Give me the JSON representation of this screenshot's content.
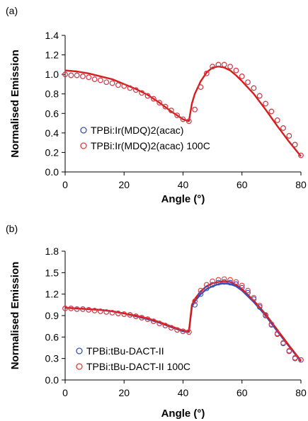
{
  "chart_data": [
    {
      "type": "line",
      "panel_label": "(a)",
      "xlabel": "Angle (°)",
      "ylabel": "Normalised Emission",
      "xlim": [
        0,
        80
      ],
      "ylim": [
        0,
        1.4
      ],
      "xticks": [
        0,
        20,
        40,
        60,
        80
      ],
      "yticks": [
        0.0,
        0.2,
        0.4,
        0.6,
        0.8,
        1.0,
        1.2,
        1.4
      ],
      "ytick_decimals": 1,
      "grid": false,
      "legend_position": "bottom-left",
      "series": [
        {
          "name": "TPBi:Ir(MDQ)2(acac)",
          "kind": "markers",
          "color": "#3a4fb8",
          "x": [
            0,
            2,
            4,
            6,
            8,
            10,
            12,
            14,
            16,
            18,
            20,
            22,
            24,
            26,
            28,
            30,
            32,
            34,
            36,
            38,
            40,
            42,
            44,
            46,
            48,
            50,
            52,
            54,
            56,
            58,
            60,
            62,
            64,
            66,
            68,
            70,
            72,
            74,
            76,
            78,
            80
          ],
          "y": [
            1.0,
            0.99,
            0.99,
            0.98,
            0.97,
            0.95,
            0.94,
            0.92,
            0.91,
            0.89,
            0.88,
            0.86,
            0.84,
            0.81,
            0.78,
            0.75,
            0.71,
            0.67,
            0.63,
            0.58,
            0.54,
            0.52,
            0.64,
            0.87,
            1.01,
            1.08,
            1.1,
            1.1,
            1.08,
            1.04,
            0.98,
            0.92,
            0.86,
            0.78,
            0.7,
            0.62,
            0.53,
            0.45,
            0.37,
            0.28,
            0.17
          ]
        },
        {
          "name": "TPBi:Ir(MDQ)2(acac) 100C",
          "kind": "markers",
          "color": "#e23b3b",
          "x": [
            0,
            2,
            4,
            6,
            8,
            10,
            12,
            14,
            16,
            18,
            20,
            22,
            24,
            26,
            28,
            30,
            32,
            34,
            36,
            38,
            40,
            42,
            44,
            46,
            48,
            50,
            52,
            54,
            56,
            58,
            60,
            62,
            64,
            66,
            68,
            70,
            72,
            74,
            76,
            78,
            80
          ],
          "y": [
            1.0,
            0.99,
            0.99,
            0.98,
            0.97,
            0.95,
            0.94,
            0.92,
            0.91,
            0.89,
            0.88,
            0.86,
            0.84,
            0.81,
            0.78,
            0.75,
            0.71,
            0.67,
            0.63,
            0.58,
            0.54,
            0.52,
            0.64,
            0.87,
            1.01,
            1.08,
            1.1,
            1.1,
            1.08,
            1.04,
            0.98,
            0.92,
            0.86,
            0.78,
            0.7,
            0.62,
            0.53,
            0.45,
            0.37,
            0.28,
            0.17
          ]
        },
        {
          "kind": "line",
          "color": "#d81c1c",
          "x": [
            0,
            4,
            8,
            12,
            16,
            20,
            24,
            28,
            32,
            36,
            40,
            42,
            43,
            44,
            46,
            48,
            50,
            52,
            54,
            56,
            58,
            60,
            64,
            68,
            72,
            76,
            80
          ],
          "y": [
            1.04,
            1.03,
            1.01,
            0.98,
            0.95,
            0.9,
            0.85,
            0.79,
            0.71,
            0.62,
            0.54,
            0.52,
            0.7,
            0.8,
            0.93,
            1.02,
            1.07,
            1.08,
            1.07,
            1.04,
            0.99,
            0.93,
            0.8,
            0.64,
            0.47,
            0.31,
            0.16
          ]
        }
      ]
    },
    {
      "type": "line",
      "panel_label": "(b)",
      "xlabel": "Angle (°)",
      "ylabel": "Normalised Emission",
      "xlim": [
        0,
        80
      ],
      "ylim": [
        0,
        1.8
      ],
      "xticks": [
        0,
        20,
        40,
        60,
        80
      ],
      "yticks": [
        0.0,
        0.3,
        0.6,
        0.9,
        1.2,
        1.5,
        1.8
      ],
      "ytick_decimals": 1,
      "grid": false,
      "legend_position": "bottom-left",
      "series": [
        {
          "name": "TPBi:tBu-DACT-II",
          "kind": "markers",
          "color": "#3a4fb8",
          "x": [
            0,
            2,
            4,
            6,
            8,
            10,
            12,
            14,
            16,
            18,
            20,
            22,
            24,
            26,
            28,
            30,
            32,
            34,
            36,
            38,
            40,
            42,
            44,
            46,
            48,
            50,
            52,
            54,
            56,
            58,
            60,
            62,
            64,
            66,
            68,
            70,
            72,
            74,
            76,
            78,
            80
          ],
          "y": [
            1.0,
            1.0,
            0.99,
            0.99,
            0.98,
            0.97,
            0.96,
            0.95,
            0.94,
            0.93,
            0.92,
            0.91,
            0.89,
            0.87,
            0.85,
            0.82,
            0.79,
            0.76,
            0.73,
            0.7,
            0.68,
            0.67,
            1.05,
            1.2,
            1.28,
            1.33,
            1.36,
            1.37,
            1.36,
            1.34,
            1.29,
            1.22,
            1.13,
            1.02,
            0.9,
            0.77,
            0.64,
            0.51,
            0.4,
            0.3,
            0.28
          ]
        },
        {
          "name": "TPBi:tBu-DACT-II 100C",
          "kind": "markers",
          "color": "#e23b3b",
          "x": [
            0,
            2,
            4,
            6,
            8,
            10,
            12,
            14,
            16,
            18,
            20,
            22,
            24,
            26,
            28,
            30,
            32,
            34,
            36,
            38,
            40,
            42,
            44,
            46,
            48,
            50,
            52,
            54,
            56,
            58,
            60,
            62,
            64,
            66,
            68,
            70,
            72,
            74,
            76,
            78,
            80
          ],
          "y": [
            1.0,
            1.0,
            0.99,
            0.99,
            0.98,
            0.97,
            0.96,
            0.95,
            0.94,
            0.93,
            0.92,
            0.91,
            0.89,
            0.87,
            0.85,
            0.82,
            0.79,
            0.76,
            0.73,
            0.7,
            0.68,
            0.67,
            1.1,
            1.25,
            1.33,
            1.38,
            1.4,
            1.41,
            1.4,
            1.37,
            1.32,
            1.25,
            1.15,
            1.04,
            0.91,
            0.78,
            0.65,
            0.52,
            0.41,
            0.31,
            0.28
          ]
        },
        {
          "kind": "line",
          "color": "#3a4fb8",
          "x": [
            0,
            4,
            8,
            12,
            16,
            20,
            24,
            28,
            32,
            36,
            40,
            42,
            43,
            44,
            46,
            48,
            50,
            52,
            54,
            56,
            58,
            60,
            64,
            68,
            72,
            76,
            80
          ],
          "y": [
            1.01,
            1.0,
            0.99,
            0.98,
            0.96,
            0.93,
            0.89,
            0.85,
            0.8,
            0.74,
            0.68,
            0.67,
            1.02,
            1.1,
            1.2,
            1.27,
            1.31,
            1.34,
            1.35,
            1.34,
            1.31,
            1.25,
            1.09,
            0.9,
            0.68,
            0.47,
            0.26
          ]
        },
        {
          "kind": "line",
          "color": "#d81c1c",
          "x": [
            0,
            4,
            8,
            12,
            16,
            20,
            24,
            28,
            32,
            36,
            40,
            42,
            43,
            44,
            46,
            48,
            50,
            52,
            54,
            56,
            58,
            60,
            64,
            68,
            72,
            76,
            80
          ],
          "y": [
            1.01,
            1.0,
            0.99,
            0.98,
            0.96,
            0.93,
            0.9,
            0.86,
            0.81,
            0.75,
            0.69,
            0.68,
            1.05,
            1.13,
            1.24,
            1.31,
            1.35,
            1.37,
            1.38,
            1.37,
            1.33,
            1.27,
            1.11,
            0.92,
            0.7,
            0.48,
            0.27
          ]
        }
      ]
    }
  ]
}
